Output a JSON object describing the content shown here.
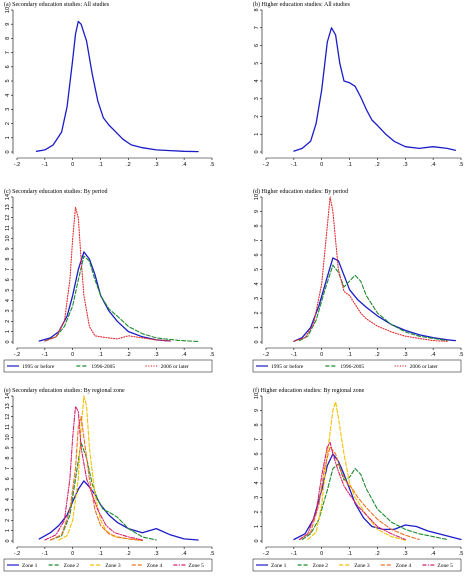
{
  "colors": {
    "blue": "#1c1cc8",
    "green": "#1f8a2e",
    "red": "#e6282d",
    "yellow": "#f2c100",
    "orange": "#f07020",
    "magenta": "#d8206e"
  },
  "chart_data": [
    {
      "id": "a",
      "type": "line",
      "title": "(a) Secondary education studies: All studies",
      "xlim": [
        -0.2,
        0.5
      ],
      "ylim": [
        0,
        10
      ],
      "xticks": [
        "-.2",
        "-.1",
        "0",
        ".1",
        ".2",
        ".3",
        ".4",
        ".5"
      ],
      "yticks": [
        "0",
        "1",
        "2",
        "3",
        "4",
        "5",
        "6",
        "7",
        "8",
        "9",
        "10"
      ],
      "legend": [],
      "series": [
        {
          "color_key": "blue",
          "style": "solid",
          "x": [
            -0.13,
            -0.1,
            -0.07,
            -0.04,
            -0.02,
            0.0,
            0.01,
            0.02,
            0.03,
            0.05,
            0.07,
            0.09,
            0.11,
            0.13,
            0.15,
            0.18,
            0.21,
            0.25,
            0.3,
            0.35,
            0.4,
            0.45
          ],
          "y": [
            0.05,
            0.15,
            0.5,
            1.4,
            3.2,
            6.5,
            8.3,
            9.2,
            9.0,
            7.8,
            5.5,
            3.6,
            2.4,
            1.9,
            1.5,
            0.9,
            0.5,
            0.3,
            0.15,
            0.1,
            0.05,
            0.03
          ]
        }
      ]
    },
    {
      "id": "b",
      "type": "line",
      "title": "(b) Higher education studies: All studies",
      "xlim": [
        -0.2,
        0.5
      ],
      "ylim": [
        0,
        8
      ],
      "xticks": [
        "-.2",
        "-.1",
        "0",
        ".1",
        ".2",
        ".3",
        ".4",
        ".5"
      ],
      "yticks": [
        "0",
        "1",
        "2",
        "3",
        "4",
        "5",
        "6",
        "7",
        "8"
      ],
      "legend": [],
      "series": [
        {
          "color_key": "blue",
          "style": "solid",
          "x": [
            -0.1,
            -0.07,
            -0.04,
            -0.02,
            0.0,
            0.02,
            0.035,
            0.05,
            0.065,
            0.08,
            0.1,
            0.12,
            0.14,
            0.16,
            0.18,
            0.2,
            0.23,
            0.26,
            0.3,
            0.35,
            0.4,
            0.45,
            0.48
          ],
          "y": [
            0.05,
            0.2,
            0.6,
            1.6,
            3.5,
            6.2,
            7.0,
            6.6,
            5.0,
            4.0,
            3.9,
            3.7,
            3.1,
            2.4,
            1.8,
            1.5,
            1.0,
            0.6,
            0.3,
            0.2,
            0.3,
            0.2,
            0.1
          ]
        }
      ]
    },
    {
      "id": "c",
      "type": "line",
      "title": "(c) Secondary education studies: By period",
      "xlim": [
        -0.2,
        0.5
      ],
      "ylim": [
        0,
        14
      ],
      "xticks": [
        "-.2",
        "-.1",
        "0",
        ".1",
        ".2",
        ".3",
        ".4",
        ".5"
      ],
      "yticks": [
        "0",
        "1",
        "2",
        "3",
        "4",
        "5",
        "6",
        "7",
        "8",
        "9",
        "10",
        "11",
        "12",
        "13",
        "14"
      ],
      "legend": [
        "1995 or before",
        "1996-2005",
        "2006 or later"
      ],
      "series": [
        {
          "name": "1995 or before",
          "color_key": "blue",
          "style": "solid",
          "x": [
            -0.12,
            -0.08,
            -0.05,
            -0.02,
            0.0,
            0.02,
            0.04,
            0.06,
            0.08,
            0.1,
            0.13,
            0.16,
            0.2,
            0.25,
            0.3,
            0.35
          ],
          "y": [
            0.1,
            0.4,
            1.0,
            2.5,
            4.5,
            7.0,
            8.7,
            8.0,
            6.5,
            4.5,
            3.0,
            2.0,
            1.0,
            0.5,
            0.2,
            0.1
          ]
        },
        {
          "name": "1996-2005",
          "color_key": "green",
          "style": "dashed",
          "x": [
            -0.1,
            -0.06,
            -0.03,
            0.0,
            0.02,
            0.04,
            0.06,
            0.08,
            0.1,
            0.13,
            0.16,
            0.2,
            0.25,
            0.3,
            0.38,
            0.45
          ],
          "y": [
            0.1,
            0.5,
            1.5,
            3.5,
            6.0,
            8.3,
            7.8,
            6.0,
            4.5,
            3.2,
            2.5,
            1.5,
            0.8,
            0.4,
            0.15,
            0.05
          ]
        },
        {
          "name": "2006 or later",
          "color_key": "red",
          "style": "dotted",
          "x": [
            -0.1,
            -0.06,
            -0.03,
            -0.01,
            0.0,
            0.01,
            0.02,
            0.03,
            0.04,
            0.06,
            0.08,
            0.1,
            0.13,
            0.16,
            0.2,
            0.25,
            0.3,
            0.35
          ],
          "y": [
            0.1,
            0.5,
            2.0,
            6.0,
            10.0,
            13.0,
            12.0,
            8.0,
            4.5,
            1.5,
            0.6,
            0.5,
            0.4,
            0.3,
            0.6,
            0.4,
            0.2,
            0.1
          ]
        }
      ]
    },
    {
      "id": "d",
      "type": "line",
      "title": "(d) Higher education studies: By period",
      "xlim": [
        -0.2,
        0.5
      ],
      "ylim": [
        0,
        10
      ],
      "xticks": [
        "-.2",
        "-.1",
        "0",
        ".1",
        ".2",
        ".3",
        ".4",
        ".5"
      ],
      "yticks": [
        "0",
        "1",
        "2",
        "3",
        "4",
        "5",
        "6",
        "7",
        "8",
        "9",
        "10"
      ],
      "legend": [
        "1995 or before",
        "1996-2005",
        "2006 or later"
      ],
      "series": [
        {
          "name": "1995 or before",
          "color_key": "blue",
          "style": "solid",
          "x": [
            -0.1,
            -0.07,
            -0.04,
            -0.01,
            0.02,
            0.04,
            0.06,
            0.08,
            0.1,
            0.13,
            0.16,
            0.2,
            0.25,
            0.3,
            0.35,
            0.4,
            0.45,
            0.48
          ],
          "y": [
            0.05,
            0.3,
            1.0,
            2.5,
            4.5,
            5.8,
            5.6,
            4.6,
            3.6,
            2.9,
            2.4,
            1.8,
            1.2,
            0.8,
            0.5,
            0.3,
            0.15,
            0.1
          ]
        },
        {
          "name": "1996-2005",
          "color_key": "green",
          "style": "dashed",
          "x": [
            -0.08,
            -0.05,
            -0.02,
            0.01,
            0.04,
            0.06,
            0.08,
            0.1,
            0.12,
            0.14,
            0.16,
            0.2,
            0.25,
            0.3,
            0.35,
            0.4,
            0.45
          ],
          "y": [
            0.1,
            0.4,
            1.5,
            3.5,
            5.3,
            4.8,
            3.8,
            4.2,
            4.6,
            4.2,
            3.2,
            2.0,
            1.2,
            0.7,
            0.4,
            0.25,
            0.1
          ]
        },
        {
          "name": "2006 or later",
          "color_key": "red",
          "style": "dotted",
          "x": [
            -0.1,
            -0.06,
            -0.03,
            0.0,
            0.02,
            0.03,
            0.04,
            0.05,
            0.06,
            0.08,
            0.1,
            0.12,
            0.14,
            0.16,
            0.2,
            0.25,
            0.3,
            0.35,
            0.4,
            0.45
          ],
          "y": [
            0.05,
            0.3,
            1.2,
            4.0,
            8.0,
            10.0,
            9.0,
            7.0,
            5.0,
            3.5,
            3.2,
            2.6,
            2.0,
            1.6,
            1.1,
            0.7,
            0.4,
            0.25,
            0.1,
            0.05
          ]
        }
      ]
    },
    {
      "id": "e",
      "type": "line",
      "title": "(e) Secondary education studies: By regional zone",
      "xlim": [
        -0.2,
        0.5
      ],
      "ylim": [
        0,
        14
      ],
      "xticks": [
        "-.2",
        "-.1",
        "0",
        ".1",
        ".2",
        ".3",
        ".4",
        ".5"
      ],
      "yticks": [
        "0",
        "1",
        "2",
        "3",
        "4",
        "5",
        "6",
        "7",
        "8",
        "9",
        "10",
        "11",
        "12",
        "13",
        "14"
      ],
      "legend": [
        "Zone 1",
        "Zone 2",
        "Zone 3",
        "Zone 4",
        "Zone 5"
      ],
      "series": [
        {
          "name": "Zone 1",
          "color_key": "blue",
          "style": "solid",
          "x": [
            -0.12,
            -0.08,
            -0.05,
            -0.02,
            0.0,
            0.02,
            0.04,
            0.06,
            0.08,
            0.1,
            0.13,
            0.16,
            0.2,
            0.25,
            0.3,
            0.35,
            0.4,
            0.45
          ],
          "y": [
            0.2,
            0.8,
            1.5,
            2.5,
            3.8,
            5.0,
            5.8,
            5.2,
            4.5,
            3.5,
            2.5,
            1.8,
            1.2,
            0.8,
            1.2,
            0.6,
            0.2,
            0.1
          ]
        },
        {
          "name": "Zone 2",
          "color_key": "green",
          "style": "dashed",
          "x": [
            -0.08,
            -0.04,
            -0.01,
            0.01,
            0.03,
            0.05,
            0.07,
            0.09,
            0.11,
            0.13,
            0.16,
            0.2,
            0.25,
            0.3
          ],
          "y": [
            0.1,
            0.5,
            2.5,
            6.0,
            9.5,
            8.0,
            5.5,
            4.0,
            3.0,
            2.8,
            2.3,
            1.2,
            0.4,
            0.1
          ]
        },
        {
          "name": "Zone 3",
          "color_key": "yellow",
          "style": "dashed",
          "x": [
            -0.05,
            -0.02,
            0.0,
            0.02,
            0.03,
            0.04,
            0.05,
            0.06,
            0.08,
            0.1,
            0.12,
            0.15,
            0.2,
            0.25
          ],
          "y": [
            0.1,
            0.5,
            2.0,
            6.0,
            11.0,
            14.0,
            13.0,
            9.0,
            4.5,
            2.0,
            1.0,
            0.4,
            0.2,
            0.05
          ]
        },
        {
          "name": "Zone 4",
          "color_key": "orange",
          "style": "dashed",
          "x": [
            -0.08,
            -0.04,
            -0.01,
            0.01,
            0.02,
            0.03,
            0.04,
            0.06,
            0.08,
            0.1,
            0.13,
            0.16,
            0.2,
            0.25
          ],
          "y": [
            0.1,
            0.6,
            3.0,
            7.0,
            11.0,
            12.0,
            10.0,
            6.0,
            3.0,
            1.5,
            0.7,
            0.4,
            0.2,
            0.05
          ]
        },
        {
          "name": "Zone 5",
          "color_key": "magenta",
          "style": "dashdot",
          "x": [
            -0.1,
            -0.06,
            -0.03,
            -0.01,
            0.0,
            0.01,
            0.02,
            0.03,
            0.05,
            0.07,
            0.09,
            0.12,
            0.15,
            0.2,
            0.25
          ],
          "y": [
            0.1,
            0.6,
            2.0,
            6.0,
            10.0,
            13.0,
            12.5,
            9.0,
            6.0,
            4.5,
            3.0,
            1.5,
            0.8,
            0.4,
            0.1
          ]
        }
      ]
    },
    {
      "id": "f",
      "type": "line",
      "title": "(f) Higher education studies: By regional zone",
      "xlim": [
        -0.2,
        0.5
      ],
      "ylim": [
        0,
        10
      ],
      "xticks": [
        "-.2",
        "-.1",
        "0",
        ".1",
        ".2",
        ".3",
        ".4",
        ".5"
      ],
      "yticks": [
        "0",
        "1",
        "2",
        "3",
        "4",
        "5",
        "6",
        "7",
        "8",
        "9",
        "10"
      ],
      "legend": [
        "Zone 1",
        "Zone 2",
        "Zone 3",
        "Zone 4",
        "Zone 5"
      ],
      "series": [
        {
          "name": "Zone 1",
          "color_key": "blue",
          "style": "solid",
          "x": [
            -0.1,
            -0.06,
            -0.03,
            0.0,
            0.02,
            0.04,
            0.06,
            0.08,
            0.1,
            0.12,
            0.15,
            0.18,
            0.22,
            0.26,
            0.3,
            0.34,
            0.38,
            0.42,
            0.46,
            0.5
          ],
          "y": [
            0.1,
            0.5,
            1.5,
            3.5,
            5.2,
            6.0,
            5.5,
            4.6,
            3.6,
            2.6,
            1.6,
            1.0,
            0.8,
            0.8,
            1.1,
            1.0,
            0.7,
            0.5,
            0.3,
            0.1
          ]
        },
        {
          "name": "Zone 2",
          "color_key": "green",
          "style": "dashed",
          "x": [
            -0.07,
            -0.04,
            -0.01,
            0.02,
            0.04,
            0.06,
            0.08,
            0.1,
            0.12,
            0.14,
            0.16,
            0.2,
            0.25,
            0.3,
            0.35,
            0.4,
            0.45
          ],
          "y": [
            0.1,
            0.5,
            1.5,
            3.5,
            5.0,
            5.3,
            4.2,
            4.4,
            5.0,
            4.6,
            3.6,
            2.2,
            1.3,
            0.8,
            0.5,
            0.3,
            0.1
          ]
        },
        {
          "name": "Zone 3",
          "color_key": "yellow",
          "style": "dashed",
          "x": [
            -0.05,
            -0.02,
            0.0,
            0.02,
            0.04,
            0.05,
            0.06,
            0.08,
            0.1,
            0.12,
            0.14,
            0.16,
            0.2,
            0.25,
            0.3
          ],
          "y": [
            0.1,
            0.6,
            2.5,
            6.0,
            9.0,
            9.6,
            8.5,
            6.0,
            4.0,
            3.0,
            2.4,
            1.8,
            0.8,
            0.3,
            0.05
          ]
        },
        {
          "name": "Zone 4",
          "color_key": "orange",
          "style": "dashed",
          "x": [
            -0.08,
            -0.04,
            -0.01,
            0.01,
            0.03,
            0.05,
            0.07,
            0.09,
            0.11,
            0.13,
            0.16,
            0.2,
            0.25,
            0.3,
            0.35
          ],
          "y": [
            0.1,
            0.6,
            2.5,
            5.0,
            6.5,
            6.0,
            4.8,
            4.0,
            3.6,
            3.0,
            2.3,
            1.5,
            0.8,
            0.4,
            0.1
          ]
        },
        {
          "name": "Zone 5",
          "color_key": "magenta",
          "style": "dashdot",
          "x": [
            -0.08,
            -0.05,
            -0.02,
            0.0,
            0.02,
            0.03,
            0.04,
            0.06,
            0.08,
            0.1,
            0.13,
            0.16,
            0.2,
            0.25,
            0.3
          ],
          "y": [
            0.1,
            0.5,
            2.0,
            4.5,
            6.5,
            6.8,
            6.0,
            4.8,
            3.8,
            3.2,
            2.4,
            1.8,
            1.0,
            0.5,
            0.1
          ]
        }
      ]
    }
  ]
}
